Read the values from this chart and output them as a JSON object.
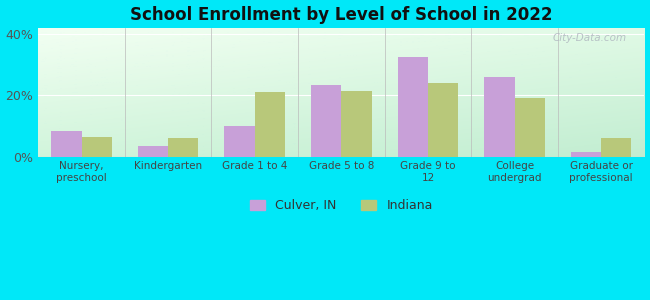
{
  "title": "School Enrollment by Level of School in 2022",
  "categories": [
    "Nursery,\npreschool",
    "Kindergarten",
    "Grade 1 to 4",
    "Grade 5 to 8",
    "Grade 9 to\n12",
    "College\nundergrad",
    "Graduate or\nprofessional"
  ],
  "culver_values": [
    8.5,
    3.5,
    10.0,
    23.5,
    32.5,
    26.0,
    1.5
  ],
  "indiana_values": [
    6.5,
    6.0,
    21.0,
    21.5,
    24.0,
    19.0,
    6.0
  ],
  "culver_color": "#c8a0d8",
  "indiana_color": "#b8c87a",
  "ylim": [
    0,
    42
  ],
  "yticks": [
    0,
    20,
    40
  ],
  "ytick_labels": [
    "0%",
    "20%",
    "40%"
  ],
  "background_outer": "#00e8f8",
  "bar_width": 0.35,
  "legend_culver": "Culver, IN",
  "legend_indiana": "Indiana",
  "watermark": "City-Data.com"
}
